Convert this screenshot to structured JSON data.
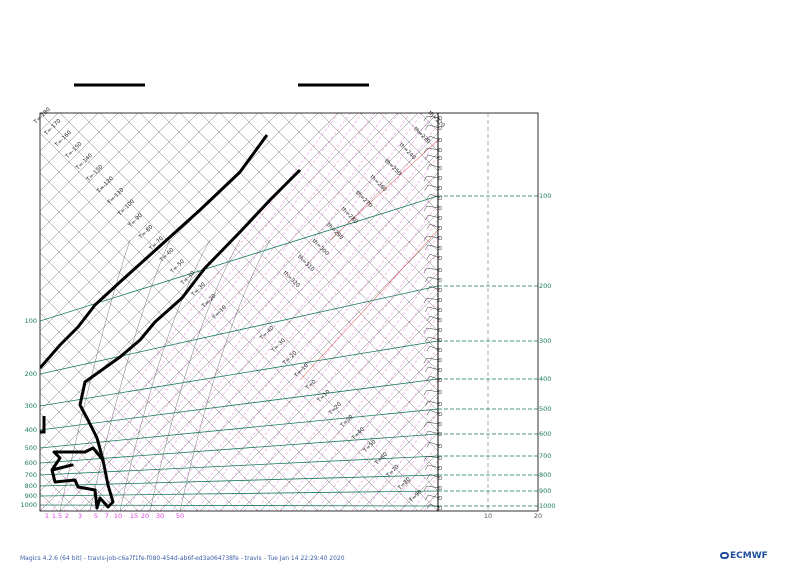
{
  "footer": {
    "text": "Magics 4.2.6 (64 bit) - travis-job-c6a7f1fe-f080-454d-ab6f-ed3a064738fe - travis - Tue Jan 14 22:29:40 2020",
    "logo": "ECMWF"
  },
  "colors": {
    "frame": "#000000",
    "grid": "#555555",
    "isobar": "#1a7a5e",
    "mixing_ratio": "#e040e0",
    "sat_adiabat": "#e02020",
    "profile": "#000000"
  },
  "chart_data": {
    "type": "line",
    "title": "",
    "xlabel": "",
    "ylabel": "",
    "skew_t": true,
    "pressure_axis": {
      "scale": "log",
      "range": [
        1000,
        50
      ],
      "left_tick_labels": [
        "100",
        "200",
        "300",
        "400",
        "500",
        "600",
        "700",
        "800",
        "900",
        "1000"
      ],
      "right_tick_labels": [
        "100",
        "200",
        "300",
        "400",
        "500",
        "600",
        "700",
        "800",
        "900",
        "1000"
      ]
    },
    "mixing_ratio_labels": [
      "1",
      "1.5",
      "2",
      "3",
      "5",
      "7",
      "10",
      "15",
      "20",
      "30",
      "50"
    ],
    "wind_speed_axis_labels": [
      "10",
      "20"
    ],
    "isotherm_labels_upper": [
      "T=-180",
      "T=-170",
      "T=-160",
      "T=-150",
      "T=-140",
      "T=-130",
      "T=-120",
      "T=-110",
      "T=-100",
      "T=-90",
      "T=-80",
      "T=-70",
      "T=-60",
      "T=-50",
      "T=-40",
      "T=-30",
      "T=-20",
      "T=-10"
    ],
    "isotherm_labels_lower": [
      "T=-40",
      "T=-30",
      "T=-20",
      "T=-10",
      "T=0",
      "T=10",
      "T=20",
      "T=30",
      "T=40",
      "T=50",
      "T=60",
      "T=70",
      "T=80",
      "T=90"
    ],
    "theta_labels": [
      "th=220",
      "th=230",
      "th=240",
      "th=250",
      "th=260",
      "th=270",
      "th=280",
      "th=290",
      "th=300",
      "th=310",
      "th=320"
    ],
    "legend_line_count": 2,
    "grid": true
  }
}
